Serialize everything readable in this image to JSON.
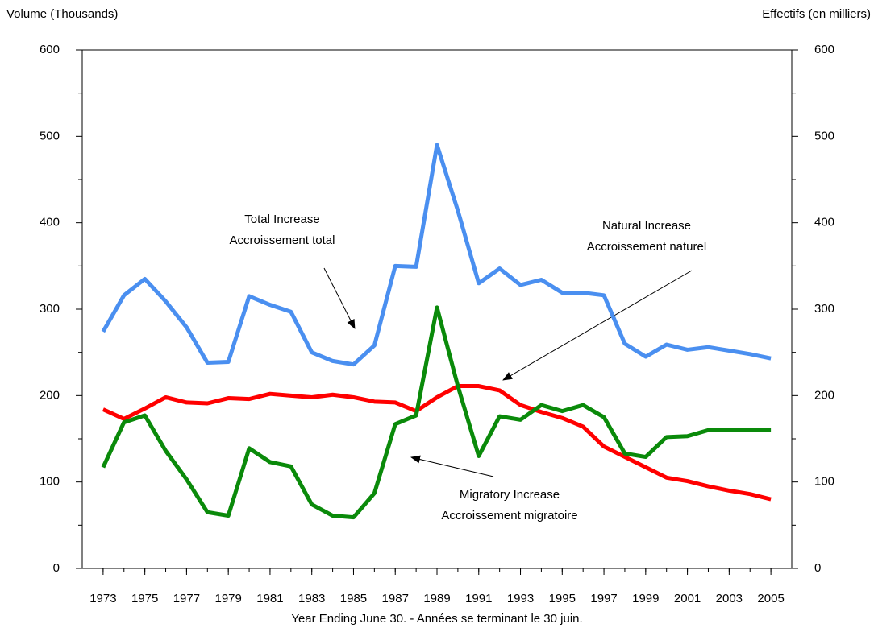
{
  "chart_data": {
    "type": "line",
    "y_label": "Volume (Thousands)",
    "y2_label": "Effectifs (en milliers)",
    "x_label": "Year Ending June 30. - Années se terminant le 30 juin.",
    "x": [
      1973,
      1974,
      1975,
      1976,
      1977,
      1978,
      1979,
      1980,
      1981,
      1982,
      1983,
      1984,
      1985,
      1986,
      1987,
      1988,
      1989,
      1990,
      1991,
      1992,
      1993,
      1994,
      1995,
      1996,
      1997,
      1998,
      1999,
      2000,
      2001,
      2002,
      2003,
      2004,
      2005
    ],
    "xlim": [
      1972,
      2006
    ],
    "xticks": [
      1973,
      1975,
      1977,
      1979,
      1981,
      1983,
      1985,
      1987,
      1989,
      1991,
      1993,
      1995,
      1997,
      1999,
      2001,
      2003,
      2005
    ],
    "ylim": [
      0,
      600
    ],
    "yticks": [
      0,
      100,
      200,
      300,
      400,
      500,
      600
    ],
    "y2lim": [
      0,
      600
    ],
    "y2ticks": [
      0,
      100,
      200,
      300,
      400,
      500,
      600
    ],
    "series": [
      {
        "name": "Total Increase",
        "color": "#4a8ff0",
        "values": [
          274,
          316,
          335,
          309,
          279,
          238,
          239,
          315,
          305,
          297,
          250,
          240,
          236,
          258,
          350,
          349,
          490,
          414,
          330,
          347,
          328,
          334,
          319,
          319,
          316,
          260,
          245,
          259,
          253,
          256,
          252,
          248,
          243
        ]
      },
      {
        "name": "Natural Increase",
        "color": "#ff0000",
        "values": [
          184,
          173,
          185,
          198,
          192,
          191,
          197,
          196,
          202,
          200,
          198,
          201,
          198,
          193,
          192,
          182,
          198,
          211,
          211,
          206,
          189,
          181,
          174,
          164,
          141,
          129,
          117,
          105,
          101,
          95,
          90,
          86,
          80
        ]
      },
      {
        "name": "Migratory Increase",
        "color": "#0a8a0a",
        "values": [
          117,
          169,
          177,
          136,
          103,
          65,
          61,
          139,
          123,
          118,
          74,
          61,
          59,
          87,
          167,
          177,
          302,
          211,
          130,
          176,
          172,
          189,
          182,
          189,
          175,
          133,
          129,
          152,
          153,
          160,
          160,
          160,
          160
        ]
      }
    ],
    "annotations": [
      {
        "lines": [
          "Total Increase",
          "Accroissement total"
        ]
      },
      {
        "lines": [
          "Natural Increase",
          "Accroissement naturel"
        ]
      },
      {
        "lines": [
          "Migratory Increase",
          "Accroissement migratoire"
        ]
      }
    ]
  }
}
